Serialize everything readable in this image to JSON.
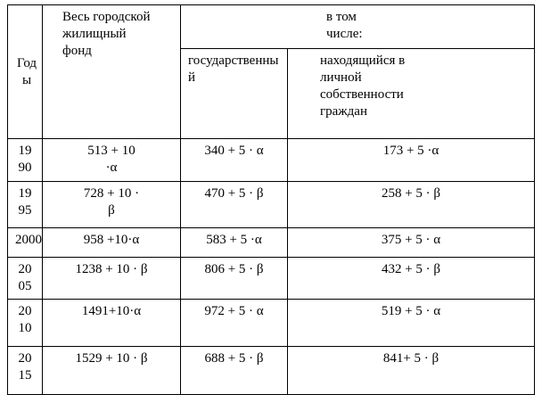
{
  "table": {
    "header": {
      "years": "Годы",
      "total": "Весь городской жилищный фонд",
      "including": "в том числе:",
      "state": "государственный",
      "private": "находящийся в личной собственности граждан"
    },
    "rows": [
      [
        "1990",
        "513 + 10 ·α",
        "340 + 5 · α",
        "173 + 5 ·α"
      ],
      [
        "1995",
        "728 + 10 · β",
        "470 + 5 · β",
        "258 + 5 · β"
      ],
      [
        "2000",
        "958 +10·α",
        "583 + 5 ·α",
        "375 + 5 · α"
      ],
      [
        "2005",
        "1238 + 10 · β",
        "806 + 5 · β",
        "432 + 5 · β"
      ],
      [
        "2010",
        "1491+10·α",
        "972 + 5 · α",
        "519 + 5 · α"
      ],
      [
        "2015",
        "1529 + 10 · β",
        "688 + 5 · β",
        "841+ 5 · β"
      ]
    ]
  }
}
